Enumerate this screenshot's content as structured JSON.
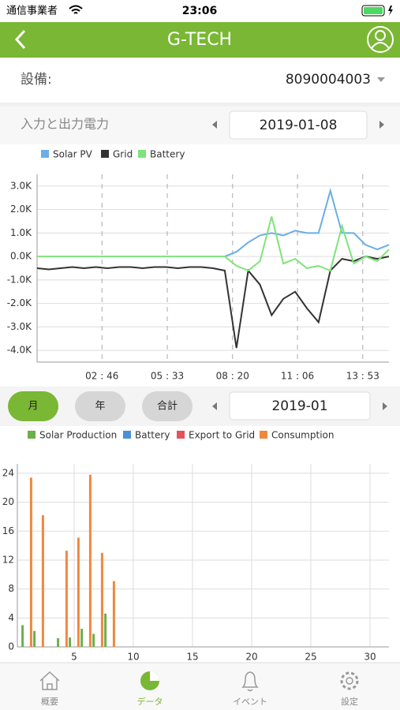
{
  "status_bar": {
    "carrier": "通信事業者",
    "time": "23:06"
  },
  "header": {
    "logo": "G-TECH"
  },
  "device": {
    "label": "設備:",
    "value": "8090004003"
  },
  "power_section": {
    "title": "入力と出力電力",
    "date": "2019-01-08"
  },
  "period_buttons": [
    "月",
    "年",
    "合計"
  ],
  "month_date": "2019-01",
  "tabs": [
    "概要",
    "データ",
    "イベント",
    "設定"
  ],
  "chart_data": [
    {
      "type": "line",
      "x": [
        0,
        30,
        60,
        90,
        120,
        150,
        180,
        210,
        240,
        270,
        300,
        330,
        360,
        390,
        420,
        450,
        480,
        510,
        540,
        570,
        600,
        630,
        660,
        690,
        720,
        750,
        780,
        810,
        840,
        870,
        900
      ],
      "xlim": [
        0,
        900
      ],
      "xticks": [
        {
          "value": 166,
          "label": "02 : 46"
        },
        {
          "value": 333,
          "label": "05 : 33"
        },
        {
          "value": 500,
          "label": "08 : 20"
        },
        {
          "value": 666,
          "label": "11 : 06"
        },
        {
          "value": 833,
          "label": "13 : 53"
        }
      ],
      "ylim": [
        -4500,
        3500
      ],
      "yticks": [
        {
          "value": 3000,
          "label": "3.0K"
        },
        {
          "value": 2000,
          "label": "2.0K"
        },
        {
          "value": 1000,
          "label": "1.0K"
        },
        {
          "value": 0,
          "label": "0.0K"
        },
        {
          "value": -1000,
          "label": "-1.0K"
        },
        {
          "value": -2000,
          "label": "-2.0K"
        },
        {
          "value": -3000,
          "label": "-3.0K"
        },
        {
          "value": -4000,
          "label": "-4.0K"
        }
      ],
      "grid": true,
      "legend": "top",
      "series": [
        {
          "name": "Solar PV",
          "color": "#6aaee8",
          "values": [
            null,
            null,
            null,
            null,
            null,
            null,
            null,
            null,
            null,
            null,
            null,
            null,
            null,
            null,
            null,
            null,
            0,
            200,
            600,
            900,
            1000,
            900,
            1100,
            1000,
            1000,
            2800,
            1000,
            1000,
            500,
            300,
            500
          ]
        },
        {
          "name": "Grid",
          "color": "#333333",
          "values": [
            -500,
            -550,
            -500,
            -450,
            -500,
            -450,
            -500,
            -450,
            -450,
            -500,
            -450,
            -450,
            -500,
            -450,
            -450,
            -500,
            -600,
            -3900,
            -600,
            -1200,
            -2500,
            -1800,
            -1500,
            -2200,
            -2800,
            -600,
            -100,
            -200,
            0,
            -100,
            0
          ]
        },
        {
          "name": "Battery",
          "color": "#7ee37a",
          "values": [
            0,
            0,
            0,
            0,
            0,
            0,
            0,
            0,
            0,
            0,
            0,
            0,
            0,
            0,
            0,
            0,
            0,
            -400,
            -600,
            -200,
            1700,
            -300,
            -100,
            -500,
            -400,
            -600,
            1300,
            -300,
            0,
            -200,
            300
          ]
        }
      ]
    },
    {
      "type": "bar",
      "x": [
        1,
        2,
        3,
        4,
        5,
        6,
        7,
        8
      ],
      "xlim": [
        0.2,
        31.6
      ],
      "xticks": [
        5,
        10,
        15,
        20,
        25,
        30
      ],
      "ylim": [
        0,
        25.3
      ],
      "yticks": [
        0,
        4,
        8,
        12,
        16,
        20,
        24
      ],
      "grid": true,
      "legend": "top",
      "series": [
        {
          "name": "Solar Production",
          "color": "#6ab04c",
          "values": [
            3.0,
            2.2,
            0,
            1.2,
            1.3,
            2.5,
            1.8,
            4.6
          ]
        },
        {
          "name": "Battery",
          "color": "#4a90d9",
          "values": [
            0,
            0,
            0,
            0,
            0,
            0,
            0,
            0
          ]
        },
        {
          "name": "Export to Grid",
          "color": "#e8505b",
          "values": [
            0,
            0,
            0,
            0,
            0,
            0,
            0,
            0
          ]
        },
        {
          "name": "Consumption",
          "color": "#f0883e",
          "values": [
            23.4,
            18.2,
            0,
            13.3,
            15.1,
            23.8,
            13.0,
            9.1
          ]
        }
      ]
    }
  ]
}
